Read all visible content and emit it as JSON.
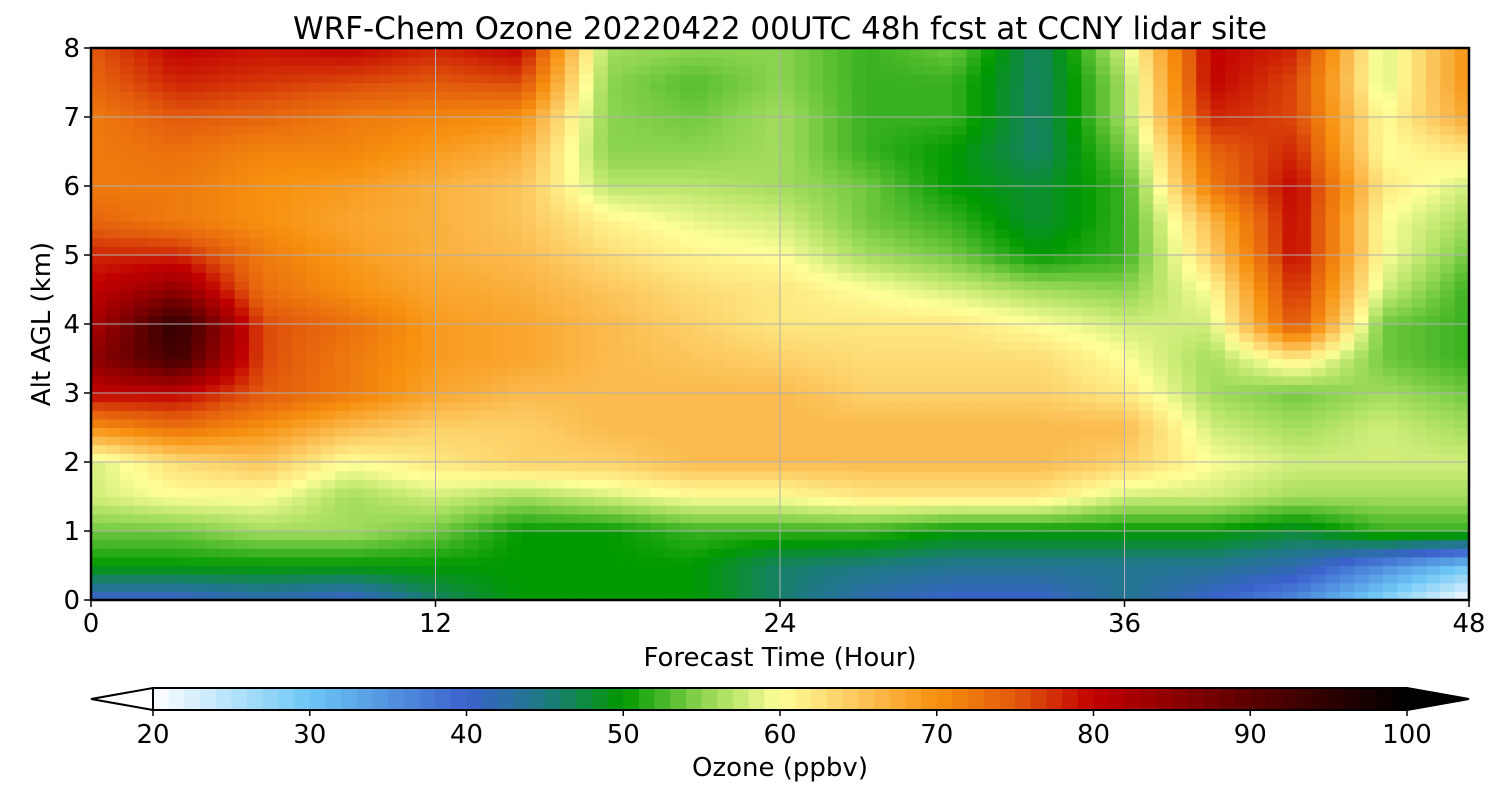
{
  "chart_data": {
    "type": "heatmap",
    "title": "WRF-Chem Ozone  20220422 00UTC 48h fcst at CCNY lidar site",
    "xlabel": "Forecast Time (Hour)",
    "ylabel": "Alt AGL (km)",
    "xlim": [
      0,
      48
    ],
    "ylim": [
      0,
      8
    ],
    "x_ticks": [
      0,
      12,
      24,
      36,
      48
    ],
    "y_ticks": [
      0,
      1,
      2,
      3,
      4,
      5,
      6,
      7,
      8
    ],
    "grid": true,
    "x": [
      0,
      3,
      6,
      9,
      12,
      15,
      18,
      21,
      24,
      27,
      30,
      33,
      36,
      39,
      42,
      45,
      48
    ],
    "y": [
      0,
      0.5,
      1,
      1.5,
      2,
      2.5,
      3,
      3.5,
      4,
      4.5,
      5,
      5.5,
      6,
      6.5,
      7,
      7.5,
      8
    ],
    "z": [
      [
        40,
        40,
        42,
        40,
        46,
        50,
        50,
        50,
        46,
        42,
        40,
        40,
        44,
        40,
        36,
        28,
        20
      ],
      [
        50,
        50,
        50,
        50,
        50,
        50,
        50,
        50,
        46,
        45,
        44,
        44,
        44,
        44,
        42,
        36,
        30
      ],
      [
        54,
        54,
        56,
        56,
        54,
        50,
        50,
        52,
        52,
        52,
        50,
        50,
        50,
        50,
        48,
        52,
        52
      ],
      [
        58,
        60,
        60,
        56,
        58,
        56,
        58,
        60,
        60,
        62,
        62,
        62,
        58,
        58,
        56,
        56,
        56
      ],
      [
        58,
        63,
        65,
        60,
        62,
        64,
        64,
        66,
        66,
        66,
        66,
        66,
        64,
        60,
        58,
        58,
        58
      ],
      [
        70,
        73,
        70,
        66,
        64,
        64,
        66,
        66,
        66,
        66,
        66,
        66,
        66,
        58,
        56,
        58,
        56
      ],
      [
        80,
        80,
        75,
        72,
        68,
        66,
        66,
        66,
        66,
        64,
        64,
        64,
        62,
        56,
        54,
        56,
        54
      ],
      [
        85,
        93,
        76,
        72,
        69,
        68,
        66,
        65,
        64,
        63,
        63,
        63,
        60,
        56,
        62,
        54,
        52
      ],
      [
        82,
        95,
        76,
        73,
        69,
        68,
        66,
        64,
        62,
        62,
        62,
        60,
        58,
        58,
        76,
        54,
        52
      ],
      [
        80,
        85,
        73,
        70,
        68,
        67,
        65,
        63,
        62,
        60,
        58,
        56,
        55,
        60,
        78,
        58,
        52
      ],
      [
        78,
        78,
        72,
        69,
        67,
        66,
        63,
        61,
        60,
        56,
        54,
        50,
        52,
        64,
        80,
        60,
        54
      ],
      [
        74,
        72,
        70,
        68,
        67,
        65,
        61,
        59,
        58,
        54,
        52,
        48,
        52,
        66,
        80,
        60,
        56
      ],
      [
        72,
        72,
        70,
        69,
        67,
        65,
        57,
        57,
        56,
        54,
        50,
        48,
        52,
        72,
        80,
        62,
        58
      ],
      [
        72,
        73,
        71,
        71,
        69,
        67,
        55,
        55,
        56,
        52,
        50,
        46,
        54,
        74,
        78,
        60,
        62
      ],
      [
        72,
        75,
        74,
        72,
        71,
        70,
        55,
        54,
        56,
        52,
        52,
        46,
        56,
        78,
        76,
        60,
        68
      ],
      [
        74,
        78,
        77,
        76,
        75,
        76,
        55,
        53,
        55,
        52,
        52,
        46,
        56,
        80,
        76,
        58,
        70
      ],
      [
        75,
        80,
        79,
        80,
        78,
        80,
        56,
        55,
        55,
        52,
        54,
        46,
        58,
        80,
        78,
        58,
        70
      ]
    ],
    "colorbar": {
      "label": "Ozone  (ppbv)",
      "min": 20,
      "max": 100,
      "ticks": [
        20,
        30,
        40,
        50,
        60,
        70,
        80,
        90,
        100
      ],
      "extend": "both",
      "stops": [
        {
          "v": 20,
          "c": "#ffffff"
        },
        {
          "v": 30,
          "c": "#6cc6f5"
        },
        {
          "v": 40,
          "c": "#3b62cc"
        },
        {
          "v": 45,
          "c": "#1d7a82"
        },
        {
          "v": 50,
          "c": "#009900"
        },
        {
          "v": 55,
          "c": "#8cd44f"
        },
        {
          "v": 60,
          "c": "#ffff99"
        },
        {
          "v": 65,
          "c": "#fcc55c"
        },
        {
          "v": 70,
          "c": "#f7900f"
        },
        {
          "v": 75,
          "c": "#e25a0c"
        },
        {
          "v": 80,
          "c": "#c10000"
        },
        {
          "v": 90,
          "c": "#5c0000"
        },
        {
          "v": 100,
          "c": "#000000"
        }
      ]
    }
  }
}
